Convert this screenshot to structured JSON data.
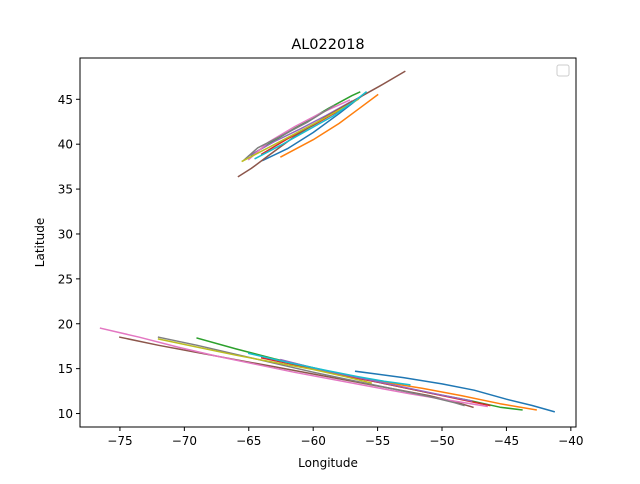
{
  "chart_data": {
    "type": "line",
    "title": "AL022018",
    "xlabel": "Longitude",
    "ylabel": "Latitude",
    "xlim": [
      -78.1,
      -39.6
    ],
    "ylim": [
      8.5,
      49.6
    ],
    "xticks": [
      -75,
      -70,
      -65,
      -60,
      -55,
      -50,
      -45,
      -40
    ],
    "xtick_labels": [
      "−75",
      "−70",
      "−65",
      "−60",
      "−55",
      "−50",
      "−45",
      "−40"
    ],
    "yticks": [
      10,
      15,
      20,
      25,
      30,
      35,
      40,
      45
    ],
    "ytick_labels": [
      "10",
      "15",
      "20",
      "25",
      "30",
      "35",
      "40",
      "45"
    ],
    "grid": false,
    "legend": {
      "placement": "top-right",
      "entries": []
    },
    "series": [
      {
        "color": "#1f77b4",
        "x": [
          -56.7,
          -53,
          -50,
          -47.5,
          -45,
          -43,
          -41.3
        ],
        "y": [
          14.7,
          14,
          13.3,
          12.6,
          11.6,
          10.9,
          10.2
        ]
      },
      {
        "color": "#ff7f0e",
        "x": [
          -63.5,
          -60,
          -57,
          -54.5,
          -51.5,
          -48.5,
          -45.5,
          -42.7
        ],
        "y": [
          16.1,
          15,
          14.1,
          13.5,
          12.8,
          12,
          11.1,
          10.4
        ]
      },
      {
        "color": "#2ca02c",
        "x": [
          -69,
          -66,
          -63,
          -60,
          -57,
          -54,
          -51,
          -48,
          -45.5,
          -43.8
        ],
        "y": [
          18.4,
          17.2,
          16.1,
          15.1,
          14.1,
          13.2,
          12.3,
          11.5,
          10.7,
          10.4
        ]
      },
      {
        "color": "#d62728",
        "x": [
          -64,
          -61,
          -58,
          -55,
          -52,
          -49,
          -46.3
        ],
        "y": [
          16.2,
          15.3,
          14.3,
          13.5,
          12.6,
          11.7,
          10.9
        ]
      },
      {
        "color": "#9467bd",
        "x": [
          -62.5,
          -59.5,
          -56.5,
          -53.5,
          -50.5,
          -47.7
        ],
        "y": [
          16,
          14.9,
          14,
          13.1,
          12.2,
          11.4
        ]
      },
      {
        "color": "#8c564b",
        "x": [
          -75,
          -72,
          -69,
          -66,
          -63,
          -60,
          -57,
          -54,
          -51,
          -49,
          -47.6
        ],
        "y": [
          18.5,
          17.6,
          16.8,
          16,
          15.2,
          14.4,
          13.6,
          12.8,
          12,
          11.3,
          10.7
        ]
      },
      {
        "color": "#e377c2",
        "x": [
          -76.5,
          -73.5,
          -70.5,
          -67.5,
          -64.5,
          -61.5,
          -58.5,
          -55.5,
          -52.5,
          -49.5,
          -46.5
        ],
        "y": [
          19.5,
          18.5,
          17.4,
          16.4,
          15.5,
          14.6,
          13.8,
          13,
          12.2,
          11.5,
          10.8
        ]
      },
      {
        "color": "#7f7f7f",
        "x": [
          -72,
          -69,
          -66,
          -63,
          -60,
          -57,
          -54,
          -51,
          -49,
          -48.3
        ],
        "y": [
          18.5,
          17.6,
          16.6,
          15.6,
          14.6,
          13.7,
          12.8,
          11.9,
          11.2,
          10.9
        ]
      },
      {
        "color": "#bcbd22",
        "x": [
          -72,
          -69,
          -66,
          -63,
          -60,
          -57.5,
          -55.5
        ],
        "y": [
          18.3,
          17.4,
          16.5,
          15.7,
          14.9,
          14.1,
          13.4
        ]
      },
      {
        "color": "#17becf",
        "x": [
          -65,
          -62,
          -59,
          -56.5,
          -54.5,
          -52.5
        ],
        "y": [
          16.7,
          15.7,
          14.8,
          14.1,
          13.6,
          13.2
        ]
      },
      {
        "color": "#1f77b4",
        "x": [
          -63.9,
          -62,
          -60,
          -58,
          -56.2
        ],
        "y": [
          38.2,
          39.5,
          41.3,
          43.4,
          45.4
        ]
      },
      {
        "color": "#ff7f0e",
        "x": [
          -62.5,
          -60,
          -58,
          -56.5,
          -55
        ],
        "y": [
          38.6,
          40.5,
          42.3,
          43.9,
          45.5
        ]
      },
      {
        "color": "#2ca02c",
        "x": [
          -64.8,
          -62.8,
          -60.8,
          -58.8,
          -57,
          -56.4
        ],
        "y": [
          38.8,
          40.6,
          42.3,
          44,
          45.4,
          45.8
        ]
      },
      {
        "color": "#d62728",
        "x": [
          -64,
          -62,
          -60,
          -58.3,
          -57.5
        ],
        "y": [
          38.9,
          40.6,
          42.1,
          43.5,
          44.2
        ]
      },
      {
        "color": "#9467bd",
        "x": [
          -65,
          -63,
          -61,
          -59,
          -57
        ],
        "y": [
          38.7,
          40.3,
          41.7,
          43.2,
          44.8
        ]
      },
      {
        "color": "#8c564b",
        "x": [
          -65.8,
          -64.8,
          -63.5,
          -61.5,
          -59.2,
          -56.8,
          -54.8,
          -52.9
        ],
        "y": [
          36.4,
          37.3,
          38.7,
          40.8,
          42.9,
          44.9,
          46.5,
          48.1
        ]
      },
      {
        "color": "#e377c2",
        "x": [
          -65,
          -63.5,
          -61.5,
          -59.5,
          -57.2
        ],
        "y": [
          38.3,
          40.2,
          41.9,
          43.4,
          44.9
        ]
      },
      {
        "color": "#7f7f7f",
        "x": [
          -65.4,
          -64.3,
          -62.5,
          -60.5,
          -58.4
        ],
        "y": [
          38.2,
          39.6,
          40.9,
          42.4,
          44.3
        ]
      },
      {
        "color": "#bcbd22",
        "x": [
          -65.5,
          -63.5,
          -61.5,
          -59.5,
          -57.5,
          -56.5
        ],
        "y": [
          38.1,
          39.6,
          41.1,
          42.6,
          44.2,
          45
        ]
      },
      {
        "color": "#17becf",
        "x": [
          -64.5,
          -62.5,
          -60.5,
          -58.5,
          -56.7,
          -55.9
        ],
        "y": [
          38.4,
          39.9,
          41.5,
          43.1,
          44.9,
          45.8
        ]
      }
    ]
  }
}
